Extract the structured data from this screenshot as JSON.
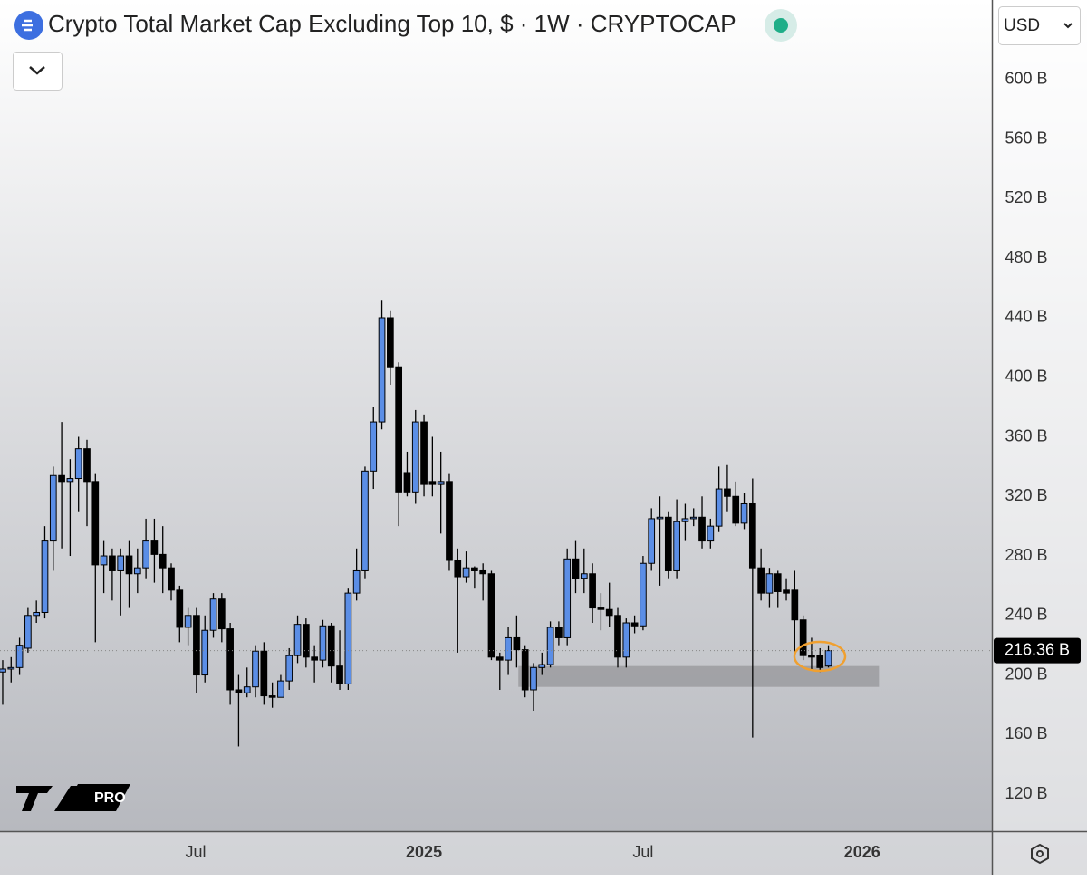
{
  "header": {
    "title": "Crypto Total Market Cap Excluding Top 10, $ · 1W · CRYPTOCAP",
    "currency": "USD",
    "logo_text": "PRO"
  },
  "chart_data": {
    "type": "candlestick",
    "title": "Crypto Total Market Cap Excluding Top 10, $ · 1W · CRYPTOCAP",
    "up_color": "#5b8ee6",
    "down_color": "#000000",
    "xlim": [
      -0.32,
      117.4
    ],
    "xticks": [
      {
        "value": 22.9,
        "label": "Jul"
      },
      {
        "value": 50,
        "label": "2025"
      },
      {
        "value": 76,
        "label": "Jul"
      },
      {
        "value": 102,
        "label": "2026"
      }
    ],
    "ylim": [
      95.1,
      653.5
    ],
    "yticks": [
      {
        "value": 120,
        "label": "120 B"
      },
      {
        "value": 160,
        "label": "160 B"
      },
      {
        "value": 200,
        "label": "200 B"
      },
      {
        "value": 240,
        "label": "240 B"
      },
      {
        "value": 280,
        "label": "280 B"
      },
      {
        "value": 320,
        "label": "320 B"
      },
      {
        "value": 360,
        "label": "360 B"
      },
      {
        "value": 400,
        "label": "400 B"
      },
      {
        "value": 440,
        "label": "440 B"
      },
      {
        "value": 480,
        "label": "480 B"
      },
      {
        "value": 520,
        "label": "520 B"
      },
      {
        "value": 560,
        "label": "560 B"
      },
      {
        "value": 600,
        "label": "600 B"
      }
    ],
    "grid": false,
    "last_price": {
      "value": 216.36,
      "label": "216.36 B"
    },
    "support_zone": {
      "xlim": [
        61.2,
        104.0
      ],
      "ylim": [
        192,
        206
      ]
    },
    "open": [
      202,
      204,
      205,
      218,
      240,
      242,
      290,
      334,
      330,
      332,
      352,
      330,
      274,
      280,
      270,
      280,
      268,
      272,
      290,
      281,
      272,
      257,
      232,
      240,
      200,
      230,
      251,
      231,
      190,
      188,
      192,
      216,
      186,
      185,
      196,
      213,
      234,
      212,
      210,
      233,
      206,
      194,
      255,
      270,
      337,
      370,
      440,
      407,
      336,
      323,
      370,
      330,
      328,
      330,
      277,
      266,
      272,
      270,
      268,
      212,
      210,
      225,
      217,
      190,
      205,
      207,
      232,
      225,
      278,
      265,
      268,
      245,
      244,
      240,
      212,
      235,
      233,
      275,
      305,
      306,
      270,
      303,
      305,
      306,
      290,
      300,
      325,
      320,
      302,
      315,
      272,
      255,
      268,
      257,
      257,
      237,
      213,
      213,
      206
    ],
    "high": [
      210,
      212,
      225,
      245,
      250,
      300,
      340,
      370,
      345,
      360,
      358,
      335,
      290,
      285,
      285,
      290,
      285,
      305,
      305,
      300,
      275,
      260,
      245,
      245,
      240,
      255,
      255,
      235,
      200,
      205,
      220,
      222,
      195,
      200,
      218,
      240,
      238,
      220,
      237,
      235,
      230,
      258,
      285,
      340,
      380,
      452,
      445,
      410,
      350,
      378,
      375,
      360,
      350,
      335,
      285,
      283,
      273,
      275,
      270,
      215,
      232,
      240,
      220,
      208,
      215,
      236,
      236,
      285,
      290,
      285,
      275,
      255,
      262,
      245,
      238,
      240,
      280,
      312,
      320,
      310,
      318,
      315,
      312,
      320,
      305,
      340,
      341,
      330,
      322,
      332,
      285,
      272,
      270,
      265,
      270,
      240,
      225,
      218,
      220
    ],
    "low": [
      180,
      195,
      200,
      215,
      235,
      238,
      270,
      285,
      280,
      310,
      300,
      222,
      255,
      250,
      240,
      245,
      255,
      265,
      262,
      255,
      250,
      222,
      220,
      188,
      195,
      225,
      222,
      180,
      152,
      185,
      185,
      180,
      178,
      185,
      190,
      208,
      205,
      195,
      205,
      195,
      190,
      190,
      250,
      265,
      325,
      365,
      395,
      300,
      320,
      315,
      320,
      320,
      295,
      270,
      215,
      262,
      258,
      250,
      210,
      190,
      200,
      205,
      185,
      176,
      200,
      205,
      220,
      220,
      255,
      255,
      235,
      230,
      232,
      205,
      205,
      228,
      230,
      270,
      260,
      265,
      265,
      290,
      300,
      285,
      285,
      296,
      310,
      300,
      298,
      158,
      250,
      245,
      245,
      250,
      215,
      210,
      203,
      202,
      205
    ],
    "close": [
      204,
      205,
      220,
      240,
      242,
      290,
      334,
      330,
      332,
      352,
      330,
      274,
      280,
      270,
      280,
      268,
      272,
      290,
      281,
      272,
      257,
      232,
      240,
      200,
      230,
      251,
      231,
      190,
      188,
      192,
      216,
      186,
      185,
      196,
      213,
      234,
      212,
      210,
      233,
      206,
      194,
      255,
      270,
      337,
      370,
      440,
      407,
      323,
      323,
      370,
      328,
      328,
      330,
      277,
      266,
      272,
      270,
      268,
      212,
      210,
      225,
      217,
      190,
      205,
      207,
      232,
      225,
      278,
      265,
      268,
      245,
      244,
      240,
      212,
      235,
      233,
      275,
      305,
      306,
      270,
      303,
      305,
      306,
      290,
      300,
      325,
      320,
      302,
      315,
      272,
      255,
      268,
      256,
      255,
      237,
      213,
      212,
      205,
      216.36
    ]
  }
}
